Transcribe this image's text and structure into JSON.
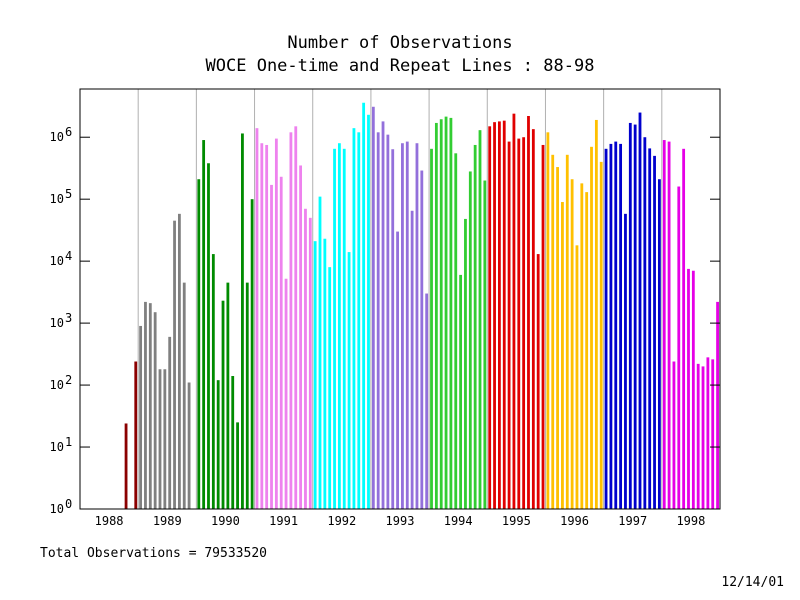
{
  "chart_data": {
    "type": "bar",
    "title_line1": "Number of Observations",
    "title_line2": "WOCE One-time and Repeat Lines : 88-98",
    "xlabel": "",
    "ylabel": "",
    "yscale": "log",
    "ylim": [
      1,
      6000000
    ],
    "y_ticks": [
      {
        "exp": "0",
        "value": 1
      },
      {
        "exp": "1",
        "value": 10
      },
      {
        "exp": "2",
        "value": 100
      },
      {
        "exp": "3",
        "value": 1000
      },
      {
        "exp": "4",
        "value": 10000
      },
      {
        "exp": "5",
        "value": 100000
      },
      {
        "exp": "6",
        "value": 1000000
      }
    ],
    "grid": "vertical lines at year boundaries",
    "years": [
      {
        "label": "1988",
        "color": "#8b0000",
        "values": [
          0,
          0,
          0,
          0,
          0,
          0,
          0,
          0,
          0,
          24,
          0,
          240
        ]
      },
      {
        "label": "1989",
        "color": "#808080",
        "values": [
          900,
          2200,
          2100,
          1500,
          180,
          180,
          600,
          45000,
          58000,
          4500,
          110,
          0
        ]
      },
      {
        "label": "1990",
        "color": "#008b00",
        "values": [
          210000,
          900000,
          380000,
          13000,
          120,
          2300,
          4500,
          140,
          25,
          1150000,
          4500,
          100000
        ]
      },
      {
        "label": "1991",
        "color": "#ee82ee",
        "values": [
          1400000,
          800000,
          750000,
          170000,
          950000,
          230000,
          5200,
          1200000,
          1500000,
          350000,
          70000,
          50000
        ]
      },
      {
        "label": "1992",
        "color": "#00ffff",
        "values": [
          21000,
          110000,
          23000,
          8000,
          650000,
          800000,
          650000,
          14000,
          1400000,
          1200000,
          3600000,
          2300000
        ]
      },
      {
        "label": "1993",
        "color": "#9370db",
        "values": [
          3100000,
          1200000,
          1800000,
          1100000,
          640000,
          30000,
          800000,
          850000,
          65000,
          800000,
          290000,
          3000
        ]
      },
      {
        "label": "1994",
        "color": "#32cd32",
        "values": [
          650000,
          1700000,
          1950000,
          2150000,
          2050000,
          550000,
          6000,
          48000,
          280000,
          750000,
          1300000,
          200000
        ]
      },
      {
        "label": "1995",
        "color": "#e00000",
        "values": [
          1500000,
          1750000,
          1800000,
          1850000,
          850000,
          2400000,
          950000,
          1000000,
          2200000,
          1350000,
          13000,
          750000
        ]
      },
      {
        "label": "1996",
        "color": "#ffc000",
        "values": [
          1200000,
          520000,
          330000,
          90000,
          520000,
          210000,
          18000,
          180000,
          130000,
          700000,
          1900000,
          400000
        ]
      },
      {
        "label": "1997",
        "color": "#0000cd",
        "values": [
          650000,
          780000,
          850000,
          780000,
          58000,
          1700000,
          1600000,
          2500000,
          1000000,
          660000,
          500000,
          210000
        ]
      },
      {
        "label": "1998",
        "color": "#e600e6",
        "values": [
          900000,
          850000,
          240,
          160000,
          650000,
          7500,
          7000,
          220,
          200,
          280,
          260,
          2200
        ]
      }
    ]
  },
  "footer": {
    "total_label": "Total Observations = 79533520",
    "date": "12/14/01"
  }
}
